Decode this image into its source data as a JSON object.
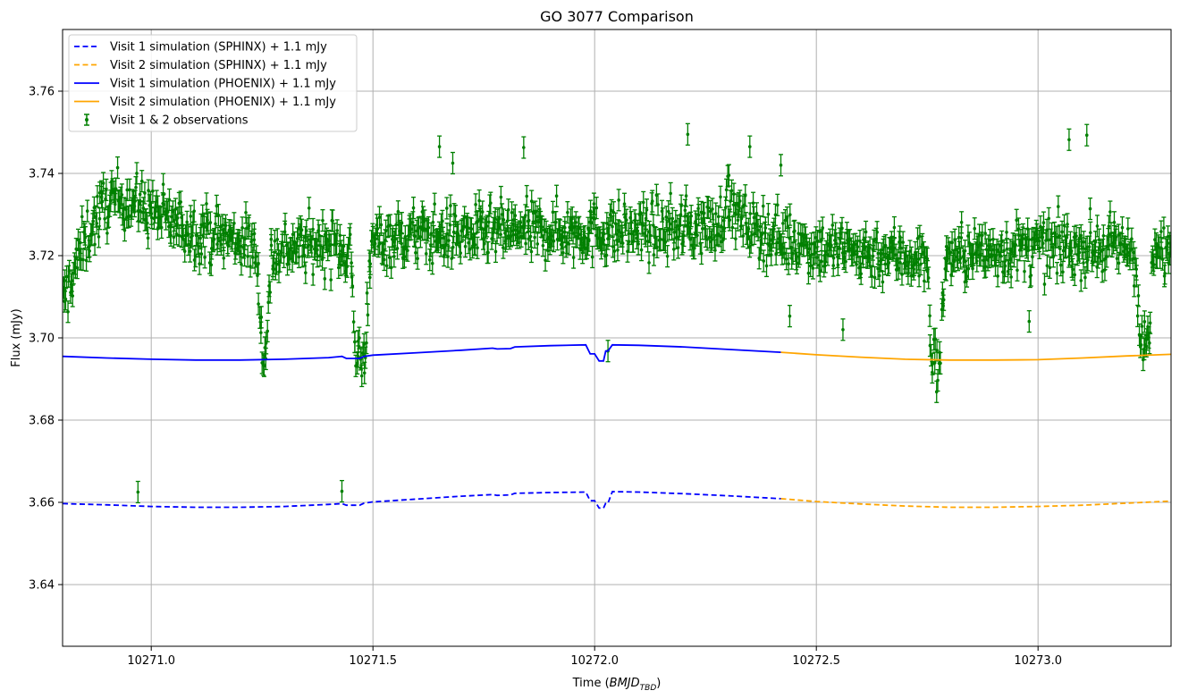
{
  "chart_data": {
    "type": "line",
    "title": "GO 3077 Comparison",
    "xlabel_prefix": "Time (",
    "xlabel_main": "BMJD",
    "xlabel_sub": "TBD",
    "xlabel_suffix": ")",
    "ylabel": "Flux (mJy)",
    "xlim": [
      10270.8,
      10273.3
    ],
    "ylim": [
      3.625,
      3.775
    ],
    "xticks": [
      10271.0,
      10271.5,
      10272.0,
      10272.5,
      10273.0
    ],
    "xtick_labels": [
      "10271.0",
      "10271.5",
      "10272.0",
      "10272.5",
      "10273.0"
    ],
    "yticks": [
      3.64,
      3.66,
      3.68,
      3.7,
      3.72,
      3.74,
      3.76
    ],
    "ytick_labels": [
      "3.64",
      "3.66",
      "3.68",
      "3.70",
      "3.72",
      "3.74",
      "3.76"
    ],
    "grid": true,
    "legend_position": "top-left",
    "colors": {
      "visit1": "#0000ff",
      "visit2": "#ffa500",
      "observations": "#008000",
      "grid": "#b0b0b0"
    },
    "series": [
      {
        "name": "Visit 1 simulation (SPHINX) + 1.1 mJy",
        "style": "dashed",
        "color": "#0000ff",
        "x": [
          10270.8,
          10270.9,
          10271.0,
          10271.1,
          10271.2,
          10271.3,
          10271.4,
          10271.43,
          10271.44,
          10271.47,
          10271.48,
          10271.5,
          10271.6,
          10271.7,
          10271.77,
          10271.78,
          10271.81,
          10271.82,
          10271.9,
          10271.98,
          10271.99,
          10272.0,
          10272.01,
          10272.02,
          10272.025,
          10272.03,
          10272.04,
          10272.1,
          10272.2,
          10272.3,
          10272.42
        ],
        "y": [
          3.6597,
          3.6594,
          3.659,
          3.6588,
          3.6588,
          3.659,
          3.6595,
          3.6597,
          3.6593,
          3.6593,
          3.6598,
          3.6601,
          3.6608,
          3.6615,
          3.6619,
          3.6617,
          3.6618,
          3.6622,
          3.6624,
          3.6625,
          3.6604,
          3.6604,
          3.6586,
          3.6586,
          3.6598,
          3.6598,
          3.6626,
          3.6625,
          3.6621,
          3.6616,
          3.6609
        ]
      },
      {
        "name": "Visit 2 simulation (SPHINX) + 1.1 mJy",
        "style": "dashed",
        "color": "#ffa500",
        "x": [
          10272.42,
          10272.5,
          10272.6,
          10272.7,
          10272.8,
          10272.9,
          10273.0,
          10273.1,
          10273.2,
          10273.3
        ],
        "y": [
          3.6609,
          3.6602,
          3.6596,
          3.6591,
          3.6588,
          3.6588,
          3.659,
          3.6593,
          3.6598,
          3.6603
        ]
      },
      {
        "name": "Visit 1 simulation (PHOENIX) + 1.1 mJy",
        "style": "solid",
        "color": "#0000ff",
        "x": [
          10270.8,
          10270.9,
          10271.0,
          10271.1,
          10271.2,
          10271.3,
          10271.4,
          10271.43,
          10271.44,
          10271.47,
          10271.48,
          10271.5,
          10271.6,
          10271.7,
          10271.77,
          10271.78,
          10271.81,
          10271.82,
          10271.9,
          10271.98,
          10271.99,
          10272.0,
          10272.01,
          10272.02,
          10272.025,
          10272.03,
          10272.04,
          10272.1,
          10272.2,
          10272.3,
          10272.42
        ],
        "y": [
          3.6955,
          3.6951,
          3.6948,
          3.6946,
          3.6946,
          3.6948,
          3.6952,
          3.6955,
          3.695,
          3.695,
          3.6955,
          3.6958,
          3.6964,
          3.697,
          3.6975,
          3.6973,
          3.6974,
          3.6978,
          3.6981,
          3.6983,
          3.6961,
          3.6961,
          3.6944,
          3.6944,
          3.6968,
          3.6968,
          3.6983,
          3.6982,
          3.6978,
          3.6972,
          3.6965
        ]
      },
      {
        "name": "Visit 2 simulation (PHOENIX) + 1.1 mJy",
        "style": "solid",
        "color": "#ffa500",
        "x": [
          10272.42,
          10272.5,
          10272.6,
          10272.7,
          10272.8,
          10272.9,
          10273.0,
          10273.1,
          10273.2,
          10273.3
        ],
        "y": [
          3.6965,
          3.6959,
          3.6953,
          3.6948,
          3.6946,
          3.6946,
          3.6947,
          3.6951,
          3.6956,
          3.696
        ]
      },
      {
        "name": "Visit 1 & 2 observations",
        "style": "errorbar",
        "color": "#008000",
        "baseline": [
          [
            10270.8,
            3.708
          ],
          [
            10270.83,
            3.718
          ],
          [
            10270.86,
            3.726
          ],
          [
            10270.9,
            3.733
          ],
          [
            10270.94,
            3.734
          ],
          [
            10271.0,
            3.731
          ],
          [
            10271.05,
            3.728
          ],
          [
            10271.1,
            3.726
          ],
          [
            10271.15,
            3.725
          ],
          [
            10271.22,
            3.723
          ],
          [
            10271.24,
            3.72
          ],
          [
            10271.25,
            3.697
          ],
          [
            10271.26,
            3.697
          ],
          [
            10271.27,
            3.72
          ],
          [
            10271.3,
            3.722
          ],
          [
            10271.4,
            3.723
          ],
          [
            10271.45,
            3.721
          ],
          [
            10271.46,
            3.696
          ],
          [
            10271.48,
            3.696
          ],
          [
            10271.5,
            3.724
          ],
          [
            10271.6,
            3.725
          ],
          [
            10271.7,
            3.725
          ],
          [
            10271.8,
            3.726
          ],
          [
            10271.9,
            3.726
          ],
          [
            10272.0,
            3.726
          ],
          [
            10272.1,
            3.726
          ],
          [
            10272.2,
            3.727
          ],
          [
            10272.28,
            3.727
          ],
          [
            10272.3,
            3.734
          ],
          [
            10272.33,
            3.728
          ],
          [
            10272.4,
            3.725
          ],
          [
            10272.5,
            3.722
          ],
          [
            10272.6,
            3.721
          ],
          [
            10272.7,
            3.72
          ],
          [
            10272.75,
            3.719
          ],
          [
            10272.76,
            3.694
          ],
          [
            10272.78,
            3.694
          ],
          [
            10272.79,
            3.72
          ],
          [
            10272.9,
            3.721
          ],
          [
            10273.0,
            3.722
          ],
          [
            10273.1,
            3.722
          ],
          [
            10273.2,
            3.722
          ],
          [
            10273.22,
            3.721
          ],
          [
            10273.23,
            3.698
          ],
          [
            10273.25,
            3.698
          ],
          [
            10273.26,
            3.72
          ],
          [
            10273.3,
            3.722
          ]
        ],
        "outliers": [
          [
            10270.97,
            3.6625
          ],
          [
            10271.43,
            3.6627
          ],
          [
            10272.03,
            3.6968
          ],
          [
            10272.44,
            3.7053
          ],
          [
            10272.98,
            3.704
          ],
          [
            10272.56,
            3.702
          ],
          [
            10271.65,
            3.7465
          ],
          [
            10271.84,
            3.7463
          ],
          [
            10272.21,
            3.7495
          ],
          [
            10273.11,
            3.7493
          ],
          [
            10271.68,
            3.7425
          ],
          [
            10272.42,
            3.742
          ],
          [
            10273.07,
            3.7482
          ],
          [
            10272.35,
            3.7465
          ]
        ]
      }
    ]
  }
}
